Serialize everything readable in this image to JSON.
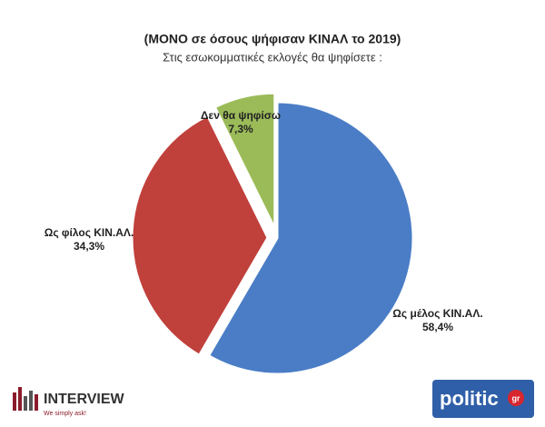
{
  "chart_data": {
    "type": "pie",
    "title": "(ΜΟΝΟ σε όσους ψήφισαν ΚΙΝΑΛ το 2019)",
    "subtitle": "Στις εσωκομματικές εκλογές θα ψηφίσετε :",
    "categories": [
      "Ως μέλος ΚΙΝ.ΑΛ.",
      "Ως φίλος ΚΙΝ.ΑΛ.",
      "Δεν θα ψηφίσω"
    ],
    "values": [
      58.4,
      34.3,
      7.3
    ],
    "value_labels": [
      "58,4%",
      "34,3%",
      "7,3%"
    ],
    "colors": [
      "#4a7dc6",
      "#c0403b",
      "#9bbb59"
    ]
  },
  "logos": {
    "left": {
      "name": "INTERVIEW",
      "tagline": "We simply ask!"
    },
    "right": {
      "name": "politic",
      "suffix": "gr"
    }
  }
}
